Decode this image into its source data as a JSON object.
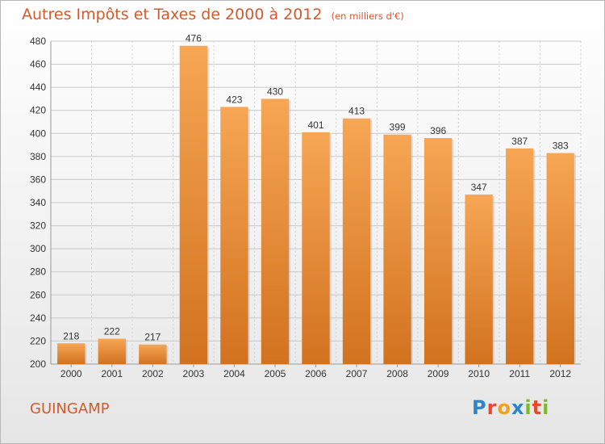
{
  "header": {
    "title": "Autres Impôts et Taxes de 2000 à 2012",
    "subtitle": "(en milliers d'€)"
  },
  "footer": {
    "city": "GUINGAMP",
    "logo": "Proxiti"
  },
  "colors": {
    "bar_top": "#f6a654",
    "bar_bottom": "#d2721f",
    "title": "#d35a2c",
    "grid": "#c8c8c8",
    "axis_text": "#333333"
  },
  "chart_data": {
    "type": "bar",
    "title": "Autres Impôts et Taxes de 2000 à 2012",
    "subtitle": "(en milliers d'€)",
    "categories": [
      "2000",
      "2001",
      "2002",
      "2003",
      "2004",
      "2005",
      "2006",
      "2007",
      "2008",
      "2009",
      "2010",
      "2011",
      "2012"
    ],
    "values": [
      218,
      222,
      217,
      476,
      423,
      430,
      401,
      413,
      399,
      396,
      347,
      387,
      383
    ],
    "ylim": [
      200,
      480
    ],
    "yticks": [
      200,
      220,
      240,
      260,
      280,
      300,
      320,
      340,
      360,
      380,
      400,
      420,
      440,
      460,
      480
    ],
    "grid": true,
    "data_labels": true
  }
}
